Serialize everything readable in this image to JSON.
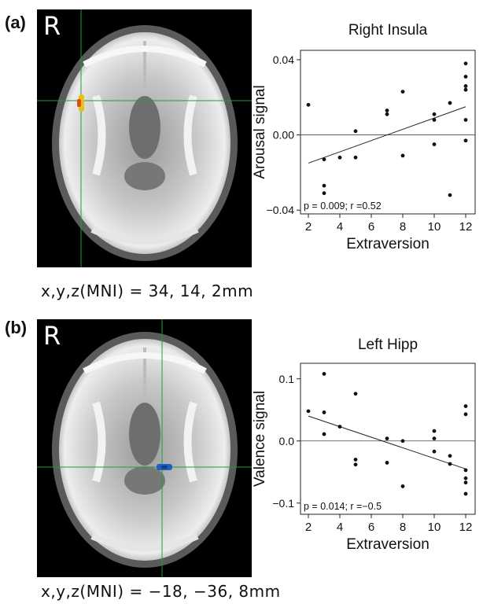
{
  "figure": {
    "panels": [
      {
        "label": "(a)",
        "side_letter": "R",
        "coords_label": "x,y,z(MNI) = 34, 14, 2mm",
        "blob_color": "#e8c21a",
        "blob_color_2": "#e04a14"
      },
      {
        "label": "(b)",
        "side_letter": "R",
        "coords_label": "x,y,z(MNI) = −18, −36, 8mm",
        "blob_color": "#1f5fbf",
        "blob_color_2": "#123f8a"
      }
    ]
  },
  "chart_data": [
    {
      "type": "scatter",
      "title": "Right Insula",
      "xlabel": "Extraversion",
      "ylabel": "Arousal signal",
      "xlim": [
        1.5,
        12.6
      ],
      "ylim": [
        -0.042,
        0.045
      ],
      "xticks": [
        2,
        4,
        6,
        8,
        10,
        12
      ],
      "yticks": [
        -0.04,
        0.0,
        0.04
      ],
      "ytick_labels": [
        "−0.04",
        "0.00",
        "0.04"
      ],
      "annotation": "p = 0.009; r =0.52",
      "zero_line": true,
      "fit_line": {
        "x": [
          2,
          12
        ],
        "y": [
          -0.015,
          0.015
        ]
      },
      "points": [
        {
          "x": 2,
          "y": 0.016
        },
        {
          "x": 3,
          "y": -0.013
        },
        {
          "x": 3,
          "y": -0.027
        },
        {
          "x": 3,
          "y": -0.031
        },
        {
          "x": 4,
          "y": -0.012
        },
        {
          "x": 5,
          "y": 0.002
        },
        {
          "x": 5,
          "y": -0.012
        },
        {
          "x": 7,
          "y": 0.013
        },
        {
          "x": 7,
          "y": 0.011
        },
        {
          "x": 8,
          "y": 0.023
        },
        {
          "x": 8,
          "y": -0.011
        },
        {
          "x": 10,
          "y": 0.011
        },
        {
          "x": 10,
          "y": 0.008
        },
        {
          "x": 10,
          "y": -0.005
        },
        {
          "x": 11,
          "y": 0.017
        },
        {
          "x": 11,
          "y": -0.032
        },
        {
          "x": 12,
          "y": 0.038
        },
        {
          "x": 12,
          "y": 0.031
        },
        {
          "x": 12,
          "y": 0.026
        },
        {
          "x": 12,
          "y": 0.024
        },
        {
          "x": 12,
          "y": 0.008
        },
        {
          "x": 12,
          "y": -0.003
        }
      ]
    },
    {
      "type": "scatter",
      "title": "Left Hipp",
      "xlabel": "Extraversion",
      "ylabel": "Valence signal",
      "xlim": [
        1.5,
        12.6
      ],
      "ylim": [
        -0.118,
        0.125
      ],
      "xticks": [
        2,
        4,
        6,
        8,
        10,
        12
      ],
      "yticks": [
        -0.1,
        0.0,
        0.1
      ],
      "ytick_labels": [
        "−0.1",
        "0.0",
        "0.1"
      ],
      "annotation": "p = 0.014; r =−0.5",
      "zero_line": true,
      "fit_line": {
        "x": [
          2,
          12
        ],
        "y": [
          0.04,
          -0.045
        ]
      },
      "points": [
        {
          "x": 2,
          "y": 0.048
        },
        {
          "x": 3,
          "y": 0.108
        },
        {
          "x": 3,
          "y": 0.046
        },
        {
          "x": 3,
          "y": 0.011
        },
        {
          "x": 4,
          "y": 0.023
        },
        {
          "x": 5,
          "y": 0.076
        },
        {
          "x": 5,
          "y": -0.03
        },
        {
          "x": 5,
          "y": -0.038
        },
        {
          "x": 7,
          "y": 0.004
        },
        {
          "x": 7,
          "y": -0.035
        },
        {
          "x": 8,
          "y": 0.0
        },
        {
          "x": 8,
          "y": -0.073
        },
        {
          "x": 10,
          "y": 0.016
        },
        {
          "x": 10,
          "y": 0.004
        },
        {
          "x": 10,
          "y": -0.017
        },
        {
          "x": 11,
          "y": -0.024
        },
        {
          "x": 11,
          "y": -0.037
        },
        {
          "x": 12,
          "y": 0.056
        },
        {
          "x": 12,
          "y": 0.043
        },
        {
          "x": 12,
          "y": -0.047
        },
        {
          "x": 12,
          "y": -0.06
        },
        {
          "x": 12,
          "y": -0.067
        },
        {
          "x": 12,
          "y": -0.085
        }
      ]
    }
  ]
}
